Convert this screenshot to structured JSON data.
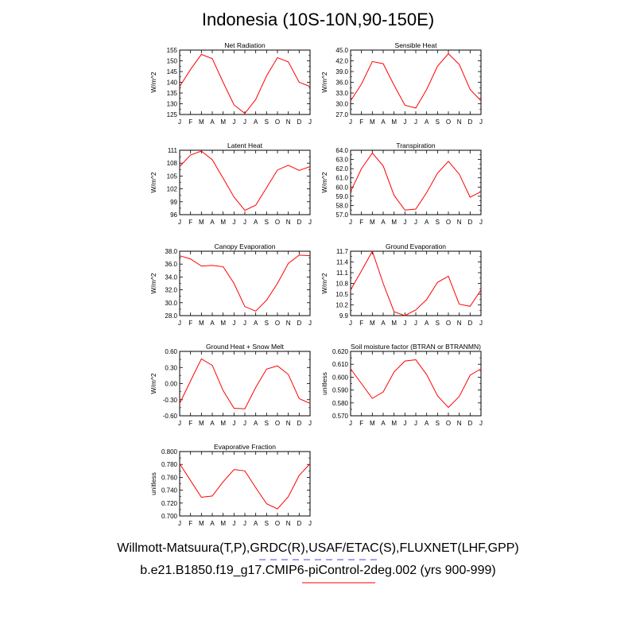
{
  "title": "Indonesia (10S-10N,90-150E)",
  "legend": {
    "obs_label": "Willmott-Matsuura(T,P),GRDC(R),USAF/ETAC(S),FLUXNET(LHF,GPP)",
    "model_label": "b.e21.B1850.f19_g17.CMIP6-piControl-2deg.002 (yrs 900-999)",
    "obs_color": "#4040ff",
    "model_color": "#ff0000"
  },
  "months": [
    "J",
    "F",
    "M",
    "A",
    "M",
    "J",
    "J",
    "A",
    "S",
    "O",
    "N",
    "D",
    "J"
  ],
  "chart_data": [
    {
      "type": "line",
      "title": "Net Radiation",
      "ylabel": "W/m^2",
      "ylim": [
        125,
        155
      ],
      "yticks": [
        "125",
        "130",
        "135",
        "140",
        "145",
        "150",
        "155"
      ],
      "series": [
        {
          "values": [
            138,
            146,
            153,
            151,
            140,
            129.5,
            125.5,
            132,
            143,
            151.5,
            149.5,
            140,
            138
          ]
        }
      ]
    },
    {
      "type": "line",
      "title": "Sensible Heat",
      "ylabel": "W/m^2",
      "ylim": [
        27,
        45
      ],
      "yticks": [
        "27.0",
        "30.0",
        "33.0",
        "36.0",
        "39.0",
        "42.0",
        "45.0"
      ],
      "series": [
        {
          "values": [
            30.8,
            35.5,
            41.8,
            41.2,
            35.2,
            29.6,
            28.8,
            34,
            40.5,
            44,
            41,
            34,
            30.8
          ]
        }
      ]
    },
    {
      "type": "line",
      "title": "Latent Heat",
      "ylabel": "W/m^2",
      "ylim": [
        96,
        111
      ],
      "yticks": [
        "96",
        "99",
        "102",
        "105",
        "108",
        "111"
      ],
      "series": [
        {
          "values": [
            107.2,
            109.9,
            110.8,
            108.8,
            104.5,
            100.1,
            97,
            98.2,
            102.3,
            106.4,
            107.5,
            106.3,
            107.2
          ]
        }
      ]
    },
    {
      "type": "line",
      "title": "Transpiration",
      "ylabel": "W/m^2",
      "ylim": [
        57,
        64
      ],
      "yticks": [
        "57.0",
        "58.0",
        "59.0",
        "60.0",
        "61.0",
        "62.0",
        "63.0",
        "64.0"
      ],
      "series": [
        {
          "values": [
            59.5,
            62,
            63.7,
            62.3,
            59.1,
            57.5,
            57.6,
            59.4,
            61.5,
            62.8,
            61.4,
            58.9,
            59.5
          ]
        }
      ]
    },
    {
      "type": "line",
      "title": "Canopy Evaporation",
      "ylabel": "W/m^2",
      "ylim": [
        28,
        38
      ],
      "yticks": [
        "28.0",
        "30.0",
        "32.0",
        "34.0",
        "36.0",
        "38.0"
      ],
      "series": [
        {
          "values": [
            37.3,
            36.8,
            35.7,
            35.8,
            35.6,
            33,
            29.4,
            28.7,
            30.4,
            33,
            36.1,
            37.4,
            37.3
          ]
        }
      ]
    },
    {
      "type": "line",
      "title": "Ground Evaporation",
      "ylabel": "W/m^2",
      "ylim": [
        9.9,
        11.7
      ],
      "yticks": [
        "9.9",
        "10.2",
        "10.5",
        "10.8",
        "11.1",
        "11.4",
        "11.7"
      ],
      "series": [
        {
          "values": [
            10.62,
            11.15,
            11.7,
            10.8,
            10.01,
            9.9,
            10.06,
            10.35,
            10.83,
            11.0,
            10.22,
            10.16,
            10.62
          ]
        }
      ]
    },
    {
      "type": "line",
      "title": "Ground Heat + Snow Melt",
      "ylabel": "W/m^2",
      "ylim": [
        -0.6,
        0.6
      ],
      "yticks": [
        "-0.60",
        "-0.30",
        "0.00",
        "0.30",
        "0.60"
      ],
      "series": [
        {
          "values": [
            -0.37,
            0.05,
            0.46,
            0.34,
            -0.13,
            -0.46,
            -0.47,
            -0.07,
            0.27,
            0.33,
            0.17,
            -0.28,
            -0.37
          ]
        }
      ]
    },
    {
      "type": "line",
      "title": "Soil moisture factor (BTRAN or BTRANMN)",
      "ylabel": "unitless",
      "ylim": [
        0.57,
        0.62
      ],
      "yticks": [
        "0.570",
        "0.580",
        "0.590",
        "0.600",
        "0.610",
        "0.620"
      ],
      "series": [
        {
          "values": [
            0.6065,
            0.595,
            0.5835,
            0.5885,
            0.604,
            0.6125,
            0.6135,
            0.602,
            0.5855,
            0.5765,
            0.585,
            0.6015,
            0.6065
          ]
        }
      ]
    },
    {
      "type": "line",
      "title": "Evaporative Fraction",
      "ylabel": "unitless",
      "ylim": [
        0.7,
        0.8
      ],
      "yticks": [
        "0.700",
        "0.720",
        "0.740",
        "0.760",
        "0.780",
        "0.800"
      ],
      "series": [
        {
          "values": [
            0.781,
            0.755,
            0.729,
            0.731,
            0.753,
            0.772,
            0.77,
            0.744,
            0.719,
            0.711,
            0.73,
            0.763,
            0.781
          ]
        }
      ]
    }
  ]
}
